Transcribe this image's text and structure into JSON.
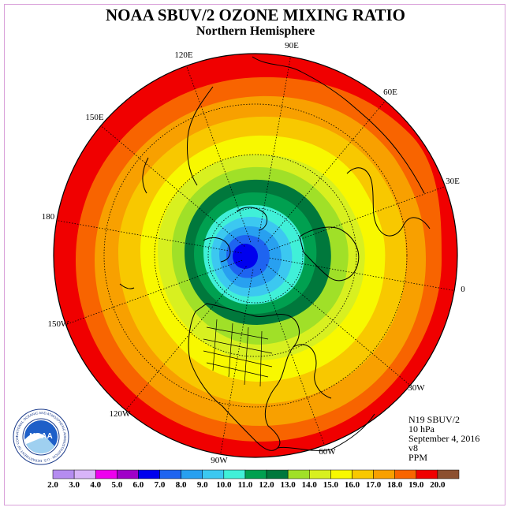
{
  "header": {
    "title": "NOAA SBUV/2 OZONE MIXING RATIO",
    "subtitle": "Northern Hemisphere"
  },
  "map": {
    "projection": "polar stereographic, north pole centered",
    "longitude_labels": [
      "90E",
      "60E",
      "30E",
      "0",
      "30W",
      "60W",
      "90W",
      "120W",
      "150W",
      "180",
      "150E",
      "120E"
    ],
    "contour_field": "ozone mixing ratio",
    "minimum_center": "near north pole",
    "maximum_band": "outer rim (low latitudes)"
  },
  "info_block": {
    "instrument": "N19 SBUV/2",
    "level": "10 hPa",
    "date": "September 4, 2016",
    "version": "v8",
    "units": "PPM"
  },
  "logo": {
    "text": "NOAA",
    "ring_text": "NATIONAL OCEANIC AND ATMOSPHERIC ADMINISTRATION · U.S. DEPARTMENT OF COMMERCE"
  },
  "colorbar": {
    "labels": [
      "2.0",
      "3.0",
      "4.0",
      "5.0",
      "6.0",
      "7.0",
      "8.0",
      "9.0",
      "10.0",
      "11.0",
      "12.0",
      "13.0",
      "14.0",
      "15.0",
      "16.0",
      "17.0",
      "18.0",
      "19.0",
      "20.0"
    ],
    "colors": [
      "#b58cf0",
      "#d8b4f8",
      "#ee00ee",
      "#a000c8",
      "#0000ee",
      "#1e64f0",
      "#28a0f0",
      "#3cc8f0",
      "#40f0d8",
      "#00a050",
      "#00783c",
      "#a0e028",
      "#d8f020",
      "#f8f800",
      "#f8c800",
      "#f8a000",
      "#f86400",
      "#f00000",
      "#8c5030"
    ]
  }
}
